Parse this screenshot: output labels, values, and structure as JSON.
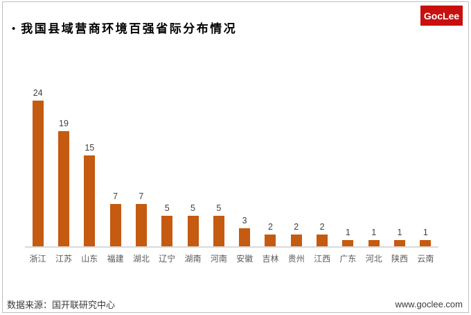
{
  "page": {
    "bullet": "•",
    "title": "我国县域营商环境百强省际分布情况",
    "logo_text": "GocLee",
    "footer_source": "数据来源：国开联研究中心",
    "footer_site": "www.goclee.com"
  },
  "colors": {
    "bar": "#C55A11",
    "logo_background": "#C8100E",
    "logo_text": "#FFFFFF",
    "frame_border": "#BFBFBF",
    "axis_line": "#D9D9D9",
    "value_label": "#404040",
    "category_label": "#595959",
    "title_text": "#000000",
    "footer_text": "#3A3A3A"
  },
  "chart_data": {
    "type": "bar",
    "title": "我国县域营商环境百强省际分布情况",
    "categories": [
      "浙江",
      "江苏",
      "山东",
      "福建",
      "湖北",
      "辽宁",
      "湖南",
      "河南",
      "安徽",
      "吉林",
      "贵州",
      "江西",
      "广东",
      "河北",
      "陕西",
      "云南"
    ],
    "values": [
      24,
      19,
      15,
      7,
      7,
      5,
      5,
      5,
      3,
      2,
      2,
      2,
      1,
      1,
      1,
      1
    ],
    "xlabel": "",
    "ylabel": "",
    "ylim": [
      0,
      24
    ],
    "grid": false,
    "legend": false,
    "data_labels": true,
    "bar_color": "#C55A11"
  }
}
